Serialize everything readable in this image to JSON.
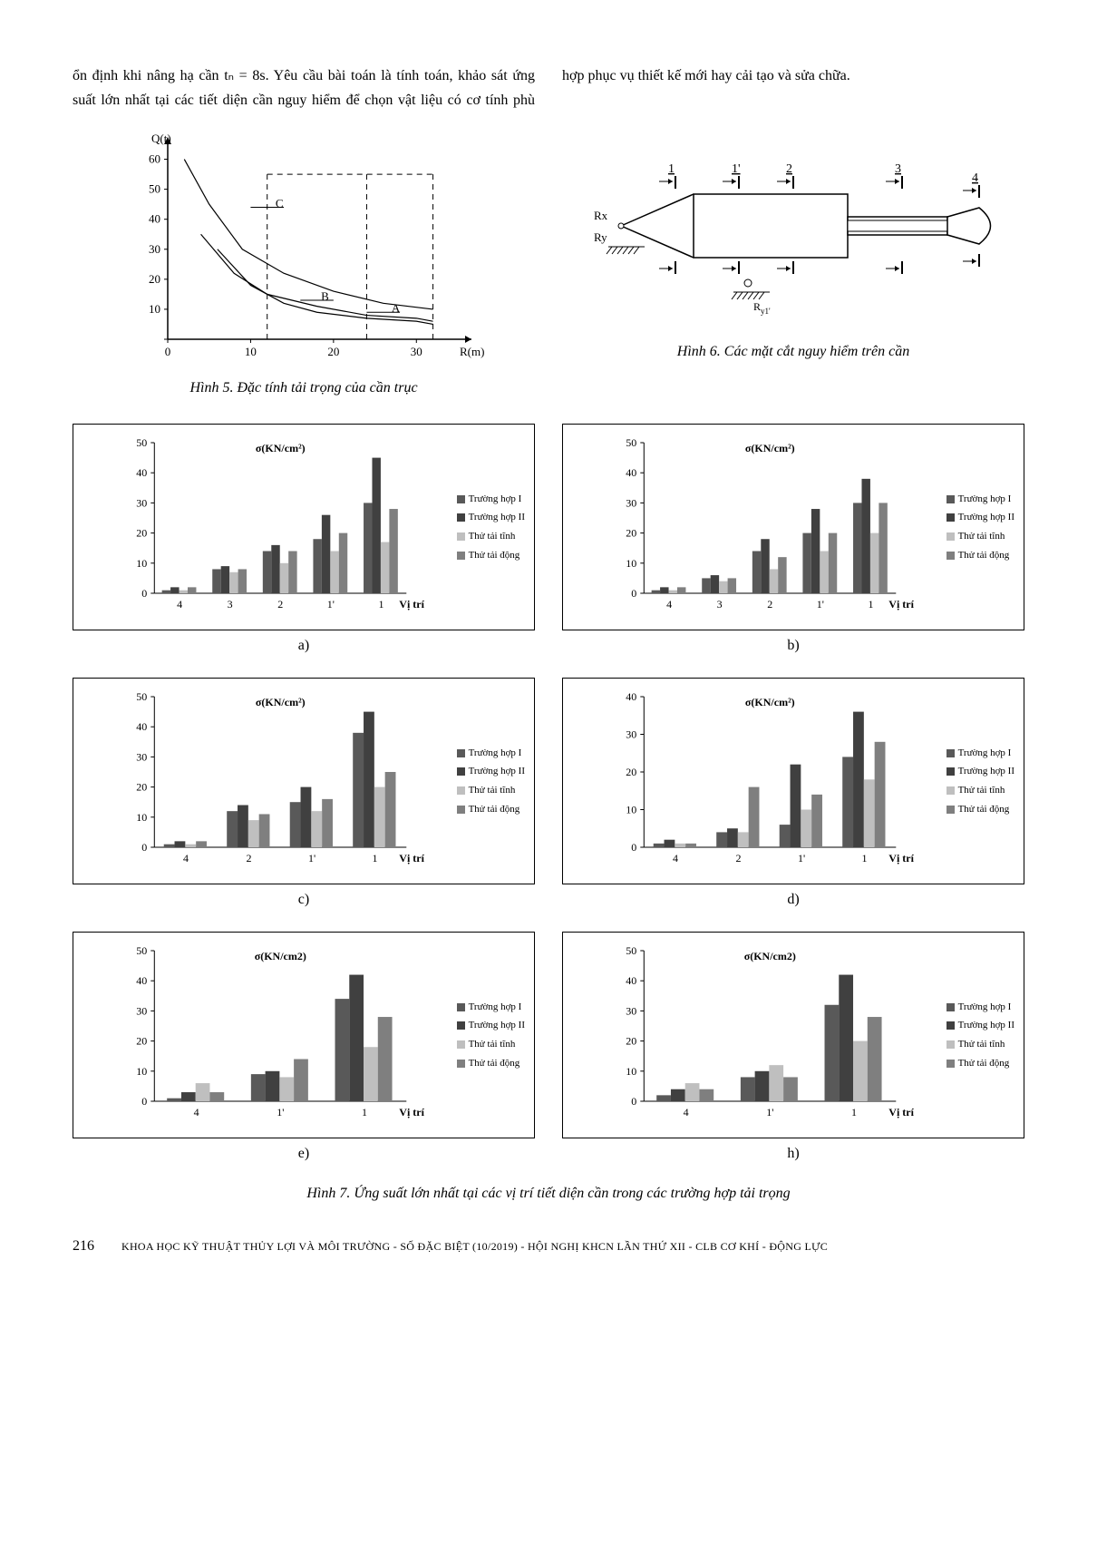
{
  "paragraph": "ổn định khi nâng hạ cần tₙ = 8s. Yêu cầu bài toán là tính toán, khảo sát ứng suất lớn nhất tại các tiết diện cần nguy hiểm để chọn vật liệu có cơ tính phù hợp phục vụ thiết kế mới hay cải tạo và sửa chữa.",
  "fig5": {
    "caption": "Hình 5. Đặc tính tải trọng của cần trục",
    "yaxis_label": "Q(t)",
    "xaxis_label": "R(m)",
    "yticks": [
      0,
      10,
      20,
      30,
      40,
      50,
      60
    ],
    "xticks": [
      0,
      10,
      20,
      30
    ],
    "annotations": {
      "A": "A",
      "B": "B",
      "C": "C"
    },
    "curves": {
      "C": [
        [
          2,
          60
        ],
        [
          5,
          45
        ],
        [
          9,
          30
        ],
        [
          14,
          22
        ],
        [
          20,
          16
        ],
        [
          26,
          12
        ],
        [
          32,
          10
        ]
      ],
      "B": [
        [
          4,
          35
        ],
        [
          8,
          22
        ],
        [
          12,
          15
        ],
        [
          18,
          11
        ],
        [
          24,
          8
        ],
        [
          30,
          7
        ],
        [
          32,
          6
        ]
      ],
      "A": [
        [
          6,
          30
        ],
        [
          10,
          18
        ],
        [
          14,
          12
        ],
        [
          18,
          9
        ],
        [
          24,
          7
        ],
        [
          30,
          6
        ],
        [
          32,
          5
        ]
      ]
    },
    "dash_verticals": [
      12,
      24,
      32
    ],
    "dash_horizontal_y": 55,
    "colors": {
      "axis": "#000000",
      "curve": "#000000",
      "dash": "#000000"
    }
  },
  "fig6": {
    "caption": "Hình 6. Các mặt cắt nguy hiểm trên cần",
    "labels": [
      "1",
      "1'",
      "2",
      "3",
      "4",
      "Rx",
      "Ry",
      "Ry1'"
    ],
    "color": "#000000"
  },
  "fig7": {
    "caption": "Hình 7. Ứng suất lớn nhất tại các vị trí tiết diện cần trong các trường hợp tải trọng",
    "ylabel": "σ(KN/cm²)",
    "ylabel_alt": "σ(KN/cm2)",
    "xlabel": "Vị trí",
    "legend": [
      {
        "label": "Trường hợp I",
        "color": "#595959"
      },
      {
        "label": "Trường hợp II",
        "color": "#404040"
      },
      {
        "label": "Thử tải tĩnh",
        "color": "#bfbfbf"
      },
      {
        "label": "Thử tải động",
        "color": "#7f7f7f"
      }
    ],
    "series_colors": [
      "#595959",
      "#404040",
      "#bfbfbf",
      "#7f7f7f"
    ],
    "charts": {
      "a": {
        "sub": "a)",
        "yticks": [
          0,
          10,
          20,
          30,
          40,
          50
        ],
        "categories": [
          "4",
          "3",
          "2",
          "1'",
          "1"
        ],
        "data": [
          [
            1,
            2,
            1,
            2
          ],
          [
            8,
            9,
            7,
            8
          ],
          [
            14,
            16,
            10,
            14
          ],
          [
            18,
            26,
            14,
            20
          ],
          [
            30,
            45,
            17,
            28
          ]
        ]
      },
      "b": {
        "sub": "b)",
        "yticks": [
          0,
          10,
          20,
          30,
          40,
          50
        ],
        "categories": [
          "4",
          "3",
          "2",
          "1'",
          "1"
        ],
        "data": [
          [
            1,
            2,
            1,
            2
          ],
          [
            5,
            6,
            4,
            5
          ],
          [
            14,
            18,
            8,
            12
          ],
          [
            20,
            28,
            14,
            20
          ],
          [
            30,
            38,
            20,
            30
          ]
        ]
      },
      "c": {
        "sub": "c)",
        "yticks": [
          0,
          10,
          20,
          30,
          40,
          50
        ],
        "categories": [
          "4",
          "2",
          "1'",
          "1"
        ],
        "data": [
          [
            1,
            2,
            1,
            2
          ],
          [
            12,
            14,
            9,
            11
          ],
          [
            15,
            20,
            12,
            16
          ],
          [
            38,
            45,
            20,
            25
          ]
        ]
      },
      "d": {
        "sub": "d)",
        "yticks": [
          0,
          10,
          20,
          30,
          40
        ],
        "categories": [
          "4",
          "2",
          "1'",
          "1"
        ],
        "data": [
          [
            1,
            2,
            1,
            1
          ],
          [
            4,
            5,
            4,
            16
          ],
          [
            6,
            22,
            10,
            14
          ],
          [
            24,
            36,
            18,
            28
          ]
        ]
      },
      "e": {
        "sub": "e)",
        "yticks": [
          0,
          10,
          20,
          30,
          40,
          50
        ],
        "categories": [
          "4",
          "1'",
          "1"
        ],
        "data": [
          [
            1,
            3,
            6,
            3
          ],
          [
            9,
            10,
            8,
            14
          ],
          [
            34,
            42,
            18,
            28
          ]
        ]
      },
      "h": {
        "sub": "h)",
        "yticks": [
          0,
          10,
          20,
          30,
          40,
          50
        ],
        "categories": [
          "4",
          "1'",
          "1"
        ],
        "data": [
          [
            2,
            4,
            6,
            4
          ],
          [
            8,
            10,
            12,
            8
          ],
          [
            32,
            42,
            20,
            28
          ]
        ]
      }
    }
  },
  "footer": {
    "page": "216",
    "text": "KHOA HỌC KỸ THUẬT THỦY LỢI VÀ MÔI TRƯỜNG - SỐ ĐẶC BIỆT (10/2019) - HỘI NGHỊ KHCN LẦN THỨ XII - CLB CƠ KHÍ - ĐỘNG LỰC"
  }
}
